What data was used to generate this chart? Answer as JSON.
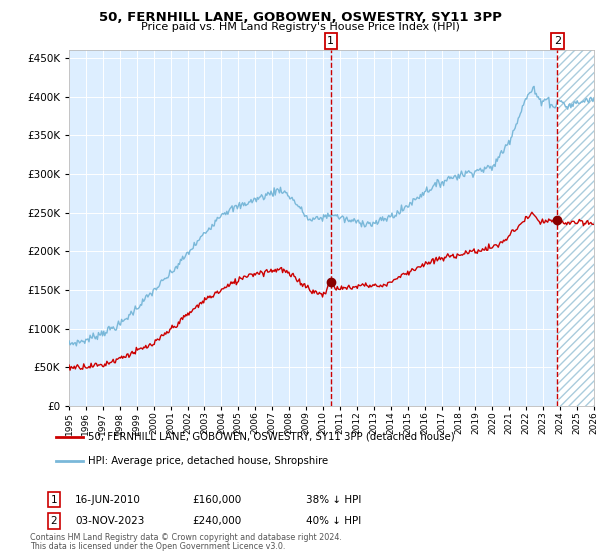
{
  "title": "50, FERNHILL LANE, GOBOWEN, OSWESTRY, SY11 3PP",
  "subtitle": "Price paid vs. HM Land Registry's House Price Index (HPI)",
  "legend_line1": "50, FERNHILL LANE, GOBOWEN, OSWESTRY, SY11 3PP (detached house)",
  "legend_line2": "HPI: Average price, detached house, Shropshire",
  "footnote1": "Contains HM Land Registry data © Crown copyright and database right 2024.",
  "footnote2": "This data is licensed under the Open Government Licence v3.0.",
  "event1_date": "16-JUN-2010",
  "event1_price": "£160,000",
  "event1_pct": "38% ↓ HPI",
  "event1_x": 2010.46,
  "event1_y": 160000,
  "event2_date": "03-NOV-2023",
  "event2_price": "£240,000",
  "event2_pct": "40% ↓ HPI",
  "event2_x": 2023.84,
  "event2_y": 240000,
  "vline1_x": 2010.46,
  "vline2_x": 2023.84,
  "ylim": [
    0,
    460000
  ],
  "xlim": [
    1995,
    2026
  ],
  "yticks": [
    0,
    50000,
    100000,
    150000,
    200000,
    250000,
    300000,
    350000,
    400000,
    450000
  ],
  "hpi_color": "#7ab8d9",
  "price_color": "#cc0000",
  "bg_color": "#ddeeff",
  "hatch_bg_color": "#ffffff",
  "grid_color": "#ffffff",
  "vline_color": "#cc0000",
  "marker_color": "#880000"
}
